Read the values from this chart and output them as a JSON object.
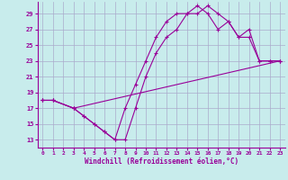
{
  "xlabel": "Windchill (Refroidissement éolien,°C)",
  "xlim": [
    -0.5,
    23.5
  ],
  "ylim": [
    12,
    30.5
  ],
  "yticks": [
    13,
    15,
    17,
    19,
    21,
    23,
    25,
    27,
    29
  ],
  "xticks": [
    0,
    1,
    2,
    3,
    4,
    5,
    6,
    7,
    8,
    9,
    10,
    11,
    12,
    13,
    14,
    15,
    16,
    17,
    18,
    19,
    20,
    21,
    22,
    23
  ],
  "bg_color": "#c8ecec",
  "grid_color": "#aaaacc",
  "line_color": "#990099",
  "line1_x": [
    0,
    1,
    3,
    4,
    5,
    6,
    7,
    8,
    9,
    10,
    11,
    12,
    13,
    14,
    15,
    16,
    17,
    18,
    19,
    20,
    21,
    22,
    23
  ],
  "line1_y": [
    18,
    18,
    17,
    16,
    15,
    14,
    13,
    13,
    17,
    21,
    24,
    26,
    27,
    29,
    29,
    30,
    29,
    28,
    26,
    27,
    23,
    23,
    23
  ],
  "line2_x": [
    0,
    1,
    3,
    23
  ],
  "line2_y": [
    18,
    18,
    17,
    23
  ],
  "line3_x": [
    0,
    1,
    3,
    4,
    5,
    6,
    7,
    8,
    9,
    10,
    11,
    12,
    13,
    14,
    15,
    16,
    17,
    18,
    19,
    20,
    21,
    22,
    23
  ],
  "line3_y": [
    18,
    18,
    17,
    16,
    15,
    14,
    13,
    17,
    20,
    23,
    26,
    28,
    29,
    29,
    30,
    29,
    27,
    28,
    26,
    26,
    23,
    23,
    23
  ]
}
